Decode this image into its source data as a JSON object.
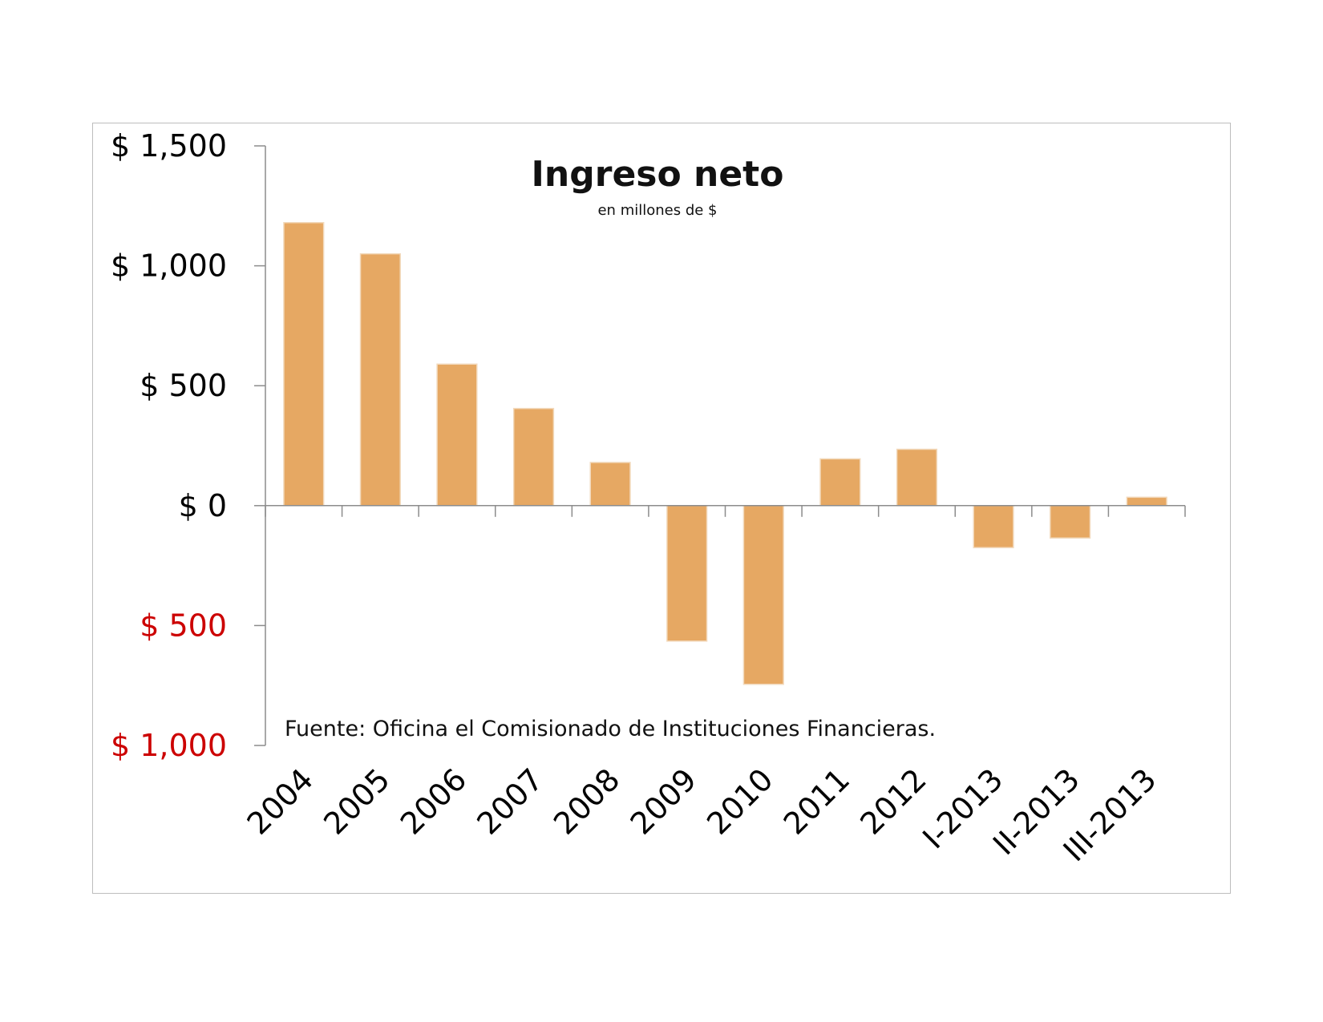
{
  "chart_data": {
    "type": "bar",
    "title": "Ingreso neto",
    "subtitle": "en millones de $",
    "source": "Fuente: Oficina el Comisionado de Instituciones Financieras.",
    "categories": [
      "2004",
      "2005",
      "2006",
      "2007",
      "2008",
      "2009",
      "2010",
      "2011",
      "2012",
      "I-2013",
      "II-2013",
      "III-2013"
    ],
    "values": [
      1180,
      1050,
      590,
      405,
      180,
      -565,
      -745,
      195,
      235,
      -175,
      -135,
      35
    ],
    "ylim": [
      -1000,
      1500
    ],
    "yticks": [
      {
        "value": 1500,
        "label": "$ 1,500",
        "color": "#000000"
      },
      {
        "value": 1000,
        "label": "$ 1,000",
        "color": "#000000"
      },
      {
        "value": 500,
        "label": "$ 500",
        "color": "#000000"
      },
      {
        "value": 0,
        "label": "$ 0",
        "color": "#000000"
      },
      {
        "value": -500,
        "label": "$ 500",
        "color": "#cc0000"
      },
      {
        "value": -1000,
        "label": "$ 1,000",
        "color": "#cc0000"
      }
    ],
    "xlabel": "",
    "ylabel": "",
    "grid": false,
    "bar_color": "#e6a863",
    "negative_label_color": "#cc0000"
  }
}
